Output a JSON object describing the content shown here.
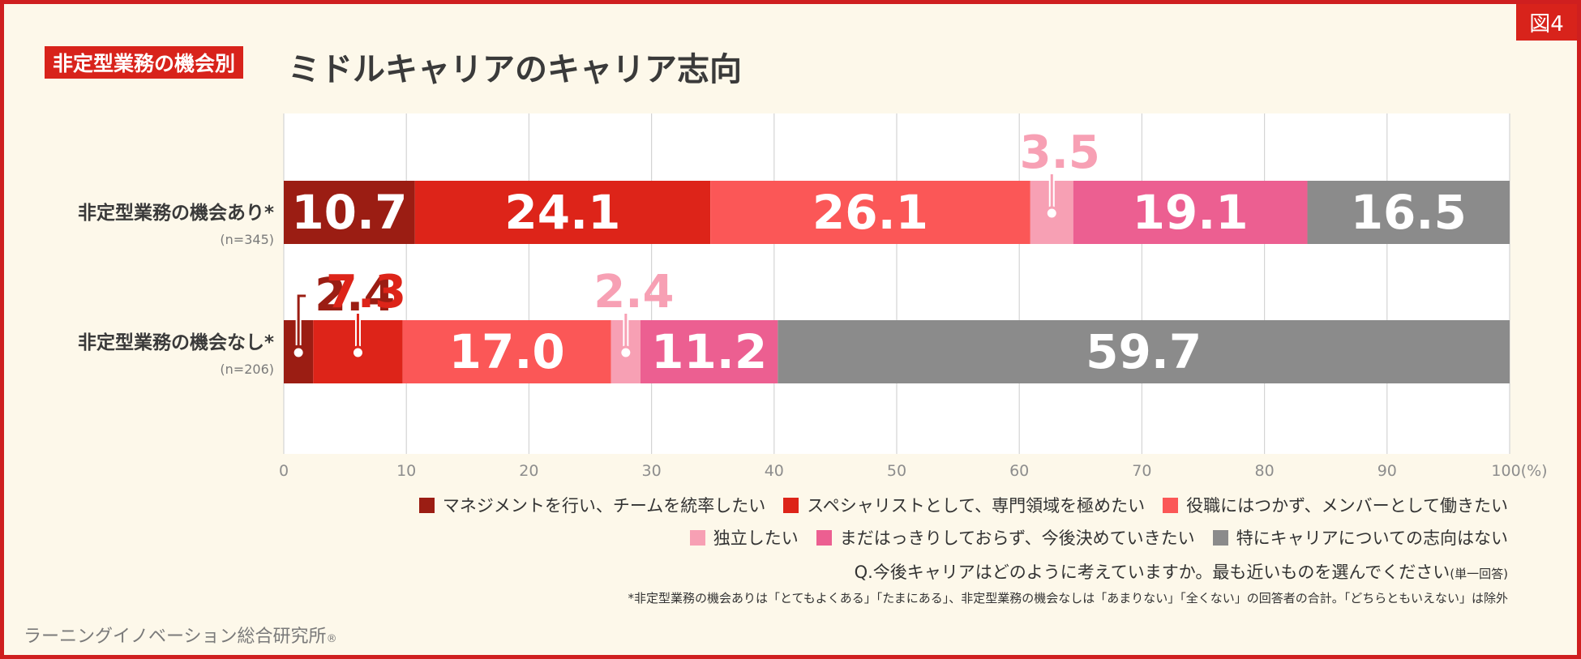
{
  "figure_tag": "図4",
  "title": {
    "badge": "非定型業務の機会別",
    "main": "ミドルキャリアのキャリア志向"
  },
  "chart_data": {
    "type": "bar",
    "orientation": "horizontal",
    "stacked": true,
    "categories": [
      "非定型業務の機会あり*",
      "非定型業務の機会なし*"
    ],
    "category_notes": [
      "(n=345)",
      "(n=206)"
    ],
    "series": [
      {
        "name": "マネジメントを行い、チームを統率したい",
        "color": "#9b1d13",
        "values": [
          10.7,
          2.4
        ]
      },
      {
        "name": "スペシャリストとして、専門領域を極めたい",
        "color": "#dd2419",
        "values": [
          24.1,
          7.3
        ]
      },
      {
        "name": "役職にはつかず、メンバーとして働きたい",
        "color": "#fb5757",
        "values": [
          26.1,
          17.0
        ]
      },
      {
        "name": "独立したい",
        "color": "#f7a0b4",
        "values": [
          3.5,
          2.4
        ]
      },
      {
        "name": "まだはっきりしておらず、今後決めていきたい",
        "color": "#ec5f91",
        "values": [
          19.1,
          11.2
        ]
      },
      {
        "name": "特にキャリアについての志向はない",
        "color": "#8b8b8b",
        "values": [
          16.5,
          59.7
        ]
      }
    ],
    "xlim": [
      0,
      100
    ],
    "xticks": [
      0,
      10,
      20,
      30,
      40,
      50,
      60,
      70,
      80,
      90,
      100
    ],
    "x_unit": "(%)",
    "grid": true
  },
  "question": "Q.今後キャリアはどのように考えていますか。最も近いものを選んでください",
  "question_note": "(単一回答)",
  "footnote": "*非定型業務の機会ありは「とてもよくある」「たまにある」、非定型業務の機会なしは「あまりない」「全くない」の回答者の合計。「どちらともいえない」は除外",
  "credit": "ラーニングイノベーション総合研究所",
  "credit_mark": "®"
}
